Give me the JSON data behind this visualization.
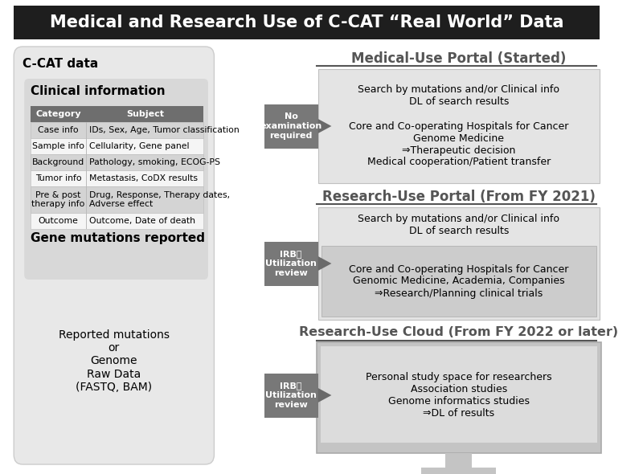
{
  "title": "Medical and Research Use of C-CAT “Real World” Data",
  "title_bg": "#1e1e1e",
  "title_color": "#ffffff",
  "bg_color": "#ffffff",
  "left_panel_bg": "#e8e8e8",
  "inner_panel_bg": "#d8d8d8",
  "table_header_bg": "#6e6e6e",
  "table_alt_bg": "#d4d4d4",
  "table_norm_bg": "#f5f5f5",
  "right_box1_bg": "#e4e4e4",
  "right_box2_outer_bg": "#e4e4e4",
  "right_box2_inner_bg": "#cccccc",
  "monitor_outer_bg": "#c4c4c4",
  "monitor_screen_bg": "#dcdcdc",
  "monitor_border": "#aaaaaa",
  "arrow_color": "#6a6a6a",
  "arrow_box_bg": "#787878",
  "portal_title_color": "#555555",
  "ccat_label": "C-CAT data",
  "clinical_info_label": "Clinical information",
  "gene_mutations_label": "Gene mutations reported",
  "raw_data_text": "Reported mutations\nor\nGenome\nRaw Data\n(FASTQ, BAM)",
  "portal1_title": "Medical-Use Portal (Started)",
  "portal2_title": "Research-Use Portal (From FY 2021)",
  "portal3_title": "Research-Use Cloud (From FY 2022 or later)",
  "no_exam_text": "No\nexamination\nrequired",
  "irb_text": "IRB・\nUtilization\nreview",
  "box1_text": "Search by mutations and/or Clinical info\nDL of search results\n\nCore and Co-operating Hospitals for Cancer\nGenome Medicine\n⇒Therapeutic decision\nMedical cooperation/Patient transfer",
  "box2_top_text": "Search by mutations and/or Clinical info\nDL of search results",
  "box2_inner_text": "Core and Co-operating Hospitals for Cancer\nGenomic Medicine, Academia, Companies\n⇒Research/Planning clinical trials",
  "box3_text": "Personal study space for researchers\nAssociation studies\nGenome informatics studies\n⇒DL of results",
  "table_headers": [
    "Category",
    "Subject"
  ],
  "table_rows": [
    [
      "Case info",
      "IDs, Sex, Age, Tumor classification"
    ],
    [
      "Sample info",
      "Cellularity, Gene panel"
    ],
    [
      "Background",
      "Pathology, smoking, ECOG-PS"
    ],
    [
      "Tumor info",
      "Metastasis, CoDX results"
    ],
    [
      "Pre & post\ntherapy info",
      "Drug, Response, Therapy dates,\nAdverse effect"
    ],
    [
      "Outcome",
      "Outcome, Date of death"
    ]
  ],
  "table_row_heights": [
    20,
    20,
    20,
    20,
    33,
    20
  ],
  "table_alt": [
    true,
    false,
    true,
    false,
    true,
    false
  ]
}
